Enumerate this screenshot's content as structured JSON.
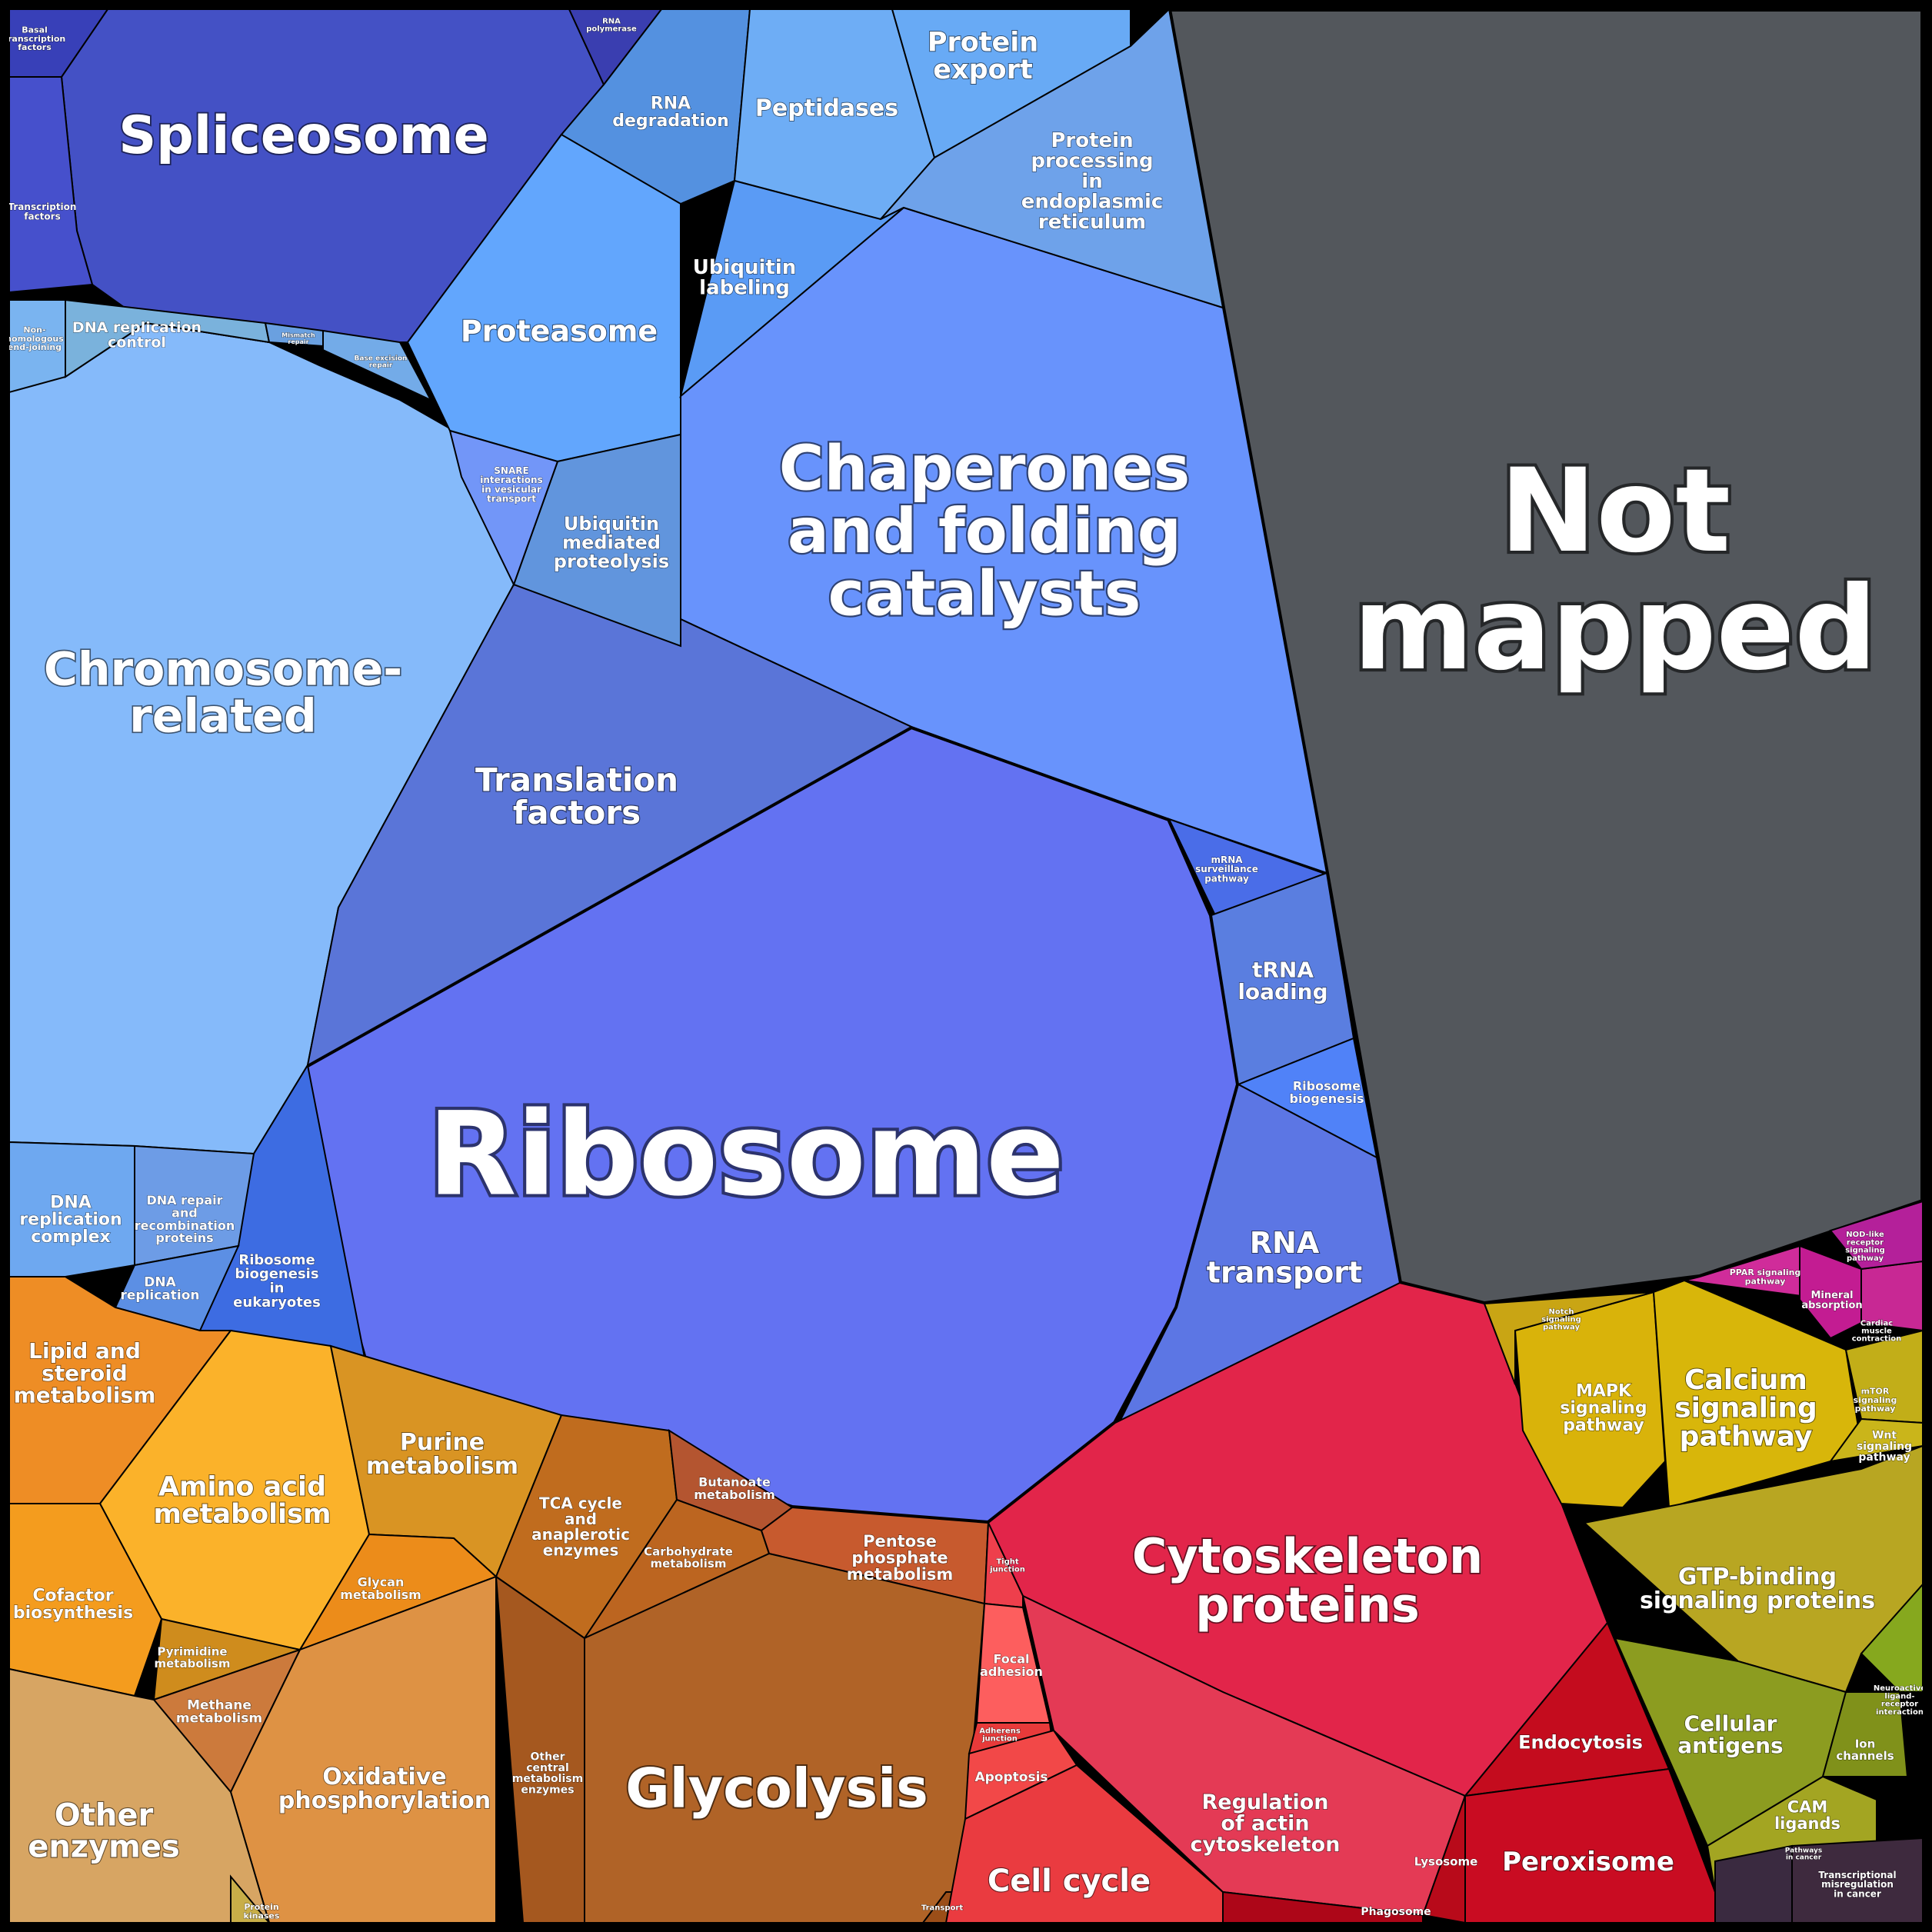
{
  "colors": {
    "background": "#000000",
    "not_mapped": "#53575c",
    "genetic_information": "#6372f2",
    "metabolism": "#e89030",
    "cellular_processes": "#e2254a",
    "signaling": "#d4b510",
    "organismal_systems": "#d020a0"
  },
  "cells": [
    {
      "id": "not-mapped",
      "label": "Not mapped",
      "color": "#53575c"
    },
    {
      "id": "ribosome",
      "label": "Ribosome",
      "color": "#6372f2"
    },
    {
      "id": "chaperones",
      "label": "Chaperones and folding catalysts",
      "color": "#6893fc"
    },
    {
      "id": "chromosome",
      "label": "Chromosome- related",
      "color": "#85bafa"
    },
    {
      "id": "spliceosome",
      "label": "Spliceosome",
      "color": "#4451c5"
    },
    {
      "id": "translation-factors",
      "label": "Translation factors",
      "color": "#5a75d8"
    },
    {
      "id": "proteasome",
      "label": "Proteasome",
      "color": "#62a6fd"
    },
    {
      "id": "rna-degradation",
      "label": "RNA degradation",
      "color": "#5491e0"
    },
    {
      "id": "peptidases",
      "label": "Peptidases",
      "color": "#6eadf5"
    },
    {
      "id": "protein-export",
      "label": "Protein export",
      "color": "#68aaf5"
    },
    {
      "id": "protein-processing-er",
      "label": "Protein processing in endoplasmic reticulum",
      "color": "#6ea2ea"
    },
    {
      "id": "ubiquitin-labeling",
      "label": "Ubiquitin labeling",
      "color": "#5a9bf5"
    },
    {
      "id": "ubiquitin-proteolysis",
      "label": "Ubiquitin mediated proteolysis",
      "color": "#6195dd"
    },
    {
      "id": "snare",
      "label": "SNARE interactions in vesicular transport",
      "color": "#7296f8"
    },
    {
      "id": "mrna-surveillance",
      "label": "mRNA surveillance pathway",
      "color": "#4a6de8"
    },
    {
      "id": "trna-loading",
      "label": "tRNA loading",
      "color": "#5a7ee0"
    },
    {
      "id": "ribosome-biogenesis",
      "label": "Ribosome biogenesis",
      "color": "#5082f8"
    },
    {
      "id": "rna-transport",
      "label": "RNA transport",
      "color": "#5c76e4"
    },
    {
      "id": "ribosome-biogenesis-euk",
      "label": "Ribosome biogenesis in eukaryotes",
      "color": "#3d6ce2"
    },
    {
      "id": "dna-replication-complex",
      "label": "DNA replication complex",
      "color": "#6ea8f0"
    },
    {
      "id": "dna-repair",
      "label": "DNA repair and recombination proteins",
      "color": "#6d9ce6"
    },
    {
      "id": "dna-replication",
      "label": "DNA replication",
      "color": "#5c8fe4"
    },
    {
      "id": "dna-replication-control",
      "label": "DNA replication control",
      "color": "#7ab2dc"
    },
    {
      "id": "nhej",
      "label": "Non-homologous end-joining",
      "color": "#7ab4f0"
    },
    {
      "id": "mismatch-repair",
      "label": "Mismatch repair",
      "color": "#6aa0e0"
    },
    {
      "id": "base-excision-repair",
      "label": "Base excision repair",
      "color": "#73abe8"
    },
    {
      "id": "basal-transcription",
      "label": "Basal transcription factors",
      "color": "#3840b8"
    },
    {
      "id": "transcription-factors",
      "label": "Transcription factors",
      "color": "#4650cc"
    },
    {
      "id": "rna-polymerase",
      "label": "RNA polymerase",
      "color": "#3a3eb0"
    },
    {
      "id": "lipid-steroid",
      "label": "Lipid and steroid metabolism",
      "color": "#ee8d25"
    },
    {
      "id": "amino-acid",
      "label": "Amino acid metabolism",
      "color": "#fbb22a"
    },
    {
      "id": "purine",
      "label": "Purine metabolism",
      "color": "#d99423"
    },
    {
      "id": "cofactor",
      "label": "Cofactor biosynthesis",
      "color": "#f49c1e"
    },
    {
      "id": "pyrimidine",
      "label": "Pyrimidine metabolism",
      "color": "#cf8c1d"
    },
    {
      "id": "glycan",
      "label": "Glycan metabolism",
      "color": "#ec8c1a"
    },
    {
      "id": "methane",
      "label": "Methane metabolism",
      "color": "#cc7a3c"
    },
    {
      "id": "oxidative-phosphorylation",
      "label": "Oxidative phosphorylation",
      "color": "#de9244"
    },
    {
      "id": "other-enzymes",
      "label": "Other enzymes",
      "color": "#d7a563"
    },
    {
      "id": "protein-kinases",
      "label": "Protein kinases",
      "color": "#c8ae48"
    },
    {
      "id": "tca-cycle",
      "label": "TCA cycle and anaplerotic enzymes",
      "color": "#c06c1e"
    },
    {
      "id": "butanoate",
      "label": "Butanoate metabolism",
      "color": "#b45530"
    },
    {
      "id": "carbohydrate",
      "label": "Carbohydrate metabolism",
      "color": "#bc6520"
    },
    {
      "id": "pentose-phosphate",
      "label": "Pentose phosphate metabolism",
      "color": "#c75a2e"
    },
    {
      "id": "other-central",
      "label": "Other central metabolism enzymes",
      "color": "#a5581f"
    },
    {
      "id": "glycolysis",
      "label": "Glycolysis",
      "color": "#b06327"
    },
    {
      "id": "transport",
      "label": "Transport",
      "color": "#9b4e18"
    },
    {
      "id": "cytoskeleton",
      "label": "Cytoskeleton proteins",
      "color": "#e2254a"
    },
    {
      "id": "tight-junction",
      "label": "Tight junction",
      "color": "#ee3f4c"
    },
    {
      "id": "focal-adhesion",
      "label": "Focal adhesion",
      "color": "#fd5e5e"
    },
    {
      "id": "adherens-junction",
      "label": "Adherens junction",
      "color": "#e83a3a"
    },
    {
      "id": "apoptosis",
      "label": "Apoptosis",
      "color": "#f24848"
    },
    {
      "id": "cell-cycle",
      "label": "Cell cycle",
      "color": "#ea3b40"
    },
    {
      "id": "regulation-actin",
      "label": "Regulation of actin cytoskeleton",
      "color": "#e43a55"
    },
    {
      "id": "endocytosis",
      "label": "Endocytosis",
      "color": "#c40c1e"
    },
    {
      "id": "lysosome",
      "label": "Lysosome",
      "color": "#b80a1a"
    },
    {
      "id": "phagosome",
      "label": "Phagosome",
      "color": "#ad0618"
    },
    {
      "id": "peroxisome",
      "label": "Peroxisome",
      "color": "#c90c22"
    },
    {
      "id": "mapk",
      "label": "MAPK signaling pathway",
      "color": "#d9b30a"
    },
    {
      "id": "calcium",
      "label": "Calcium signaling pathway",
      "color": "#d8b60a"
    },
    {
      "id": "notch",
      "label": "Notch signaling pathway",
      "color": "#c9a514"
    },
    {
      "id": "mtor",
      "label": "mTOR signaling pathway",
      "color": "#c2ae18"
    },
    {
      "id": "wnt",
      "label": "Wnt signaling pathway",
      "color": "#cab51a"
    },
    {
      "id": "gtp-binding",
      "label": "GTP-binding signaling proteins",
      "color": "#b8a622"
    },
    {
      "id": "cellular-antigens",
      "label": "Cellular antigens",
      "color": "#8c9c20"
    },
    {
      "id": "ion-channels",
      "label": "Ion channels",
      "color": "#80911a"
    },
    {
      "id": "cam-ligands",
      "label": "CAM ligands",
      "color": "#a3a522"
    },
    {
      "id": "neuroactive-ligand",
      "label": "Neuroactive ligand-receptor interaction",
      "color": "#86a81e"
    },
    {
      "id": "ppar",
      "label": "PPAR signaling pathway",
      "color": "#d02c9a"
    },
    {
      "id": "mineral-absorption",
      "label": "Mineral absorption",
      "color": "#c31c92"
    },
    {
      "id": "cardiac-muscle",
      "label": "Cardiac muscle contraction",
      "color": "#c82894"
    },
    {
      "id": "nod-like",
      "label": "NOD-like receptor signaling pathway",
      "color": "#b4209a"
    },
    {
      "id": "pathways-cancer",
      "label": "Pathways in cancer",
      "color": "#3a2a40"
    },
    {
      "id": "transcriptional-misregulation",
      "label": "Transcriptional misregulation in cancer",
      "color": "#3e2a3e"
    }
  ]
}
